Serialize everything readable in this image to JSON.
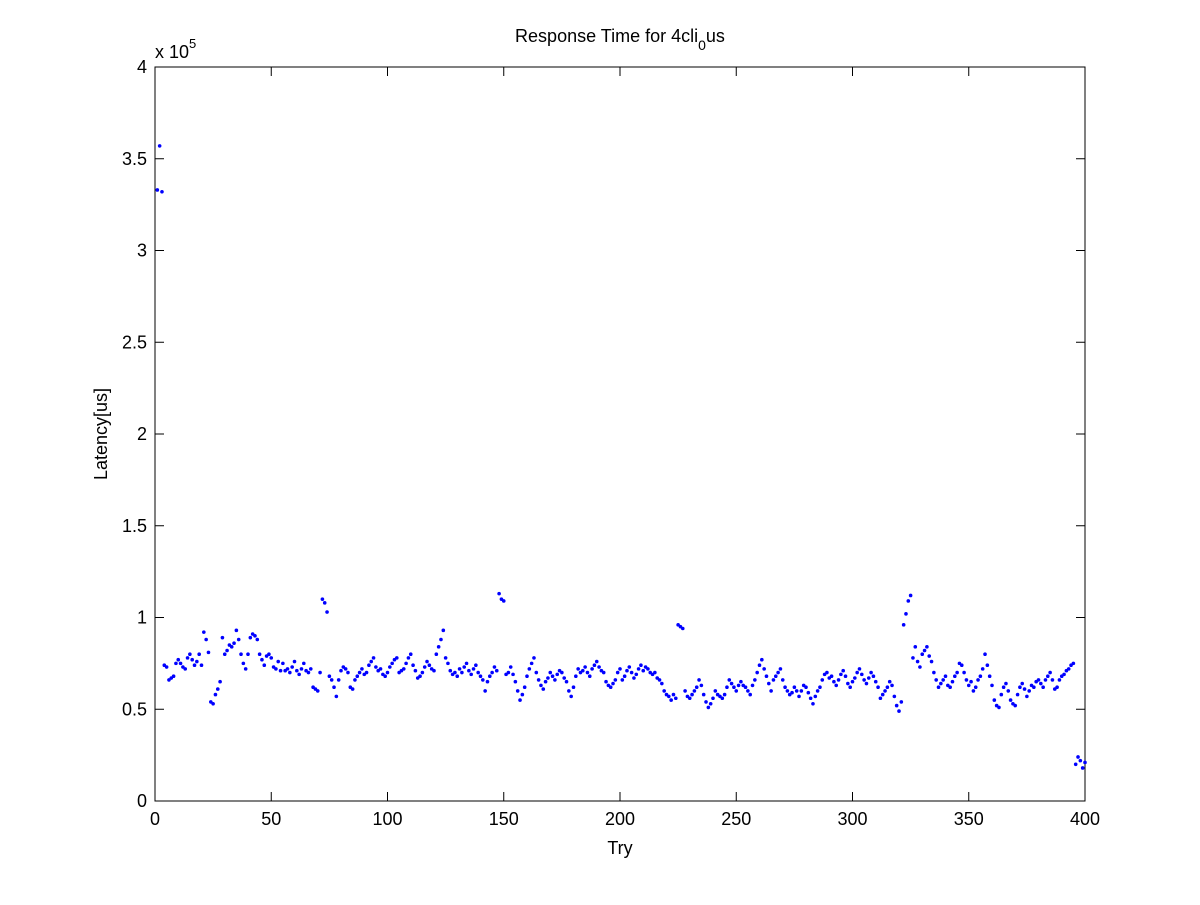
{
  "chart_data": {
    "type": "scatter",
    "title": {
      "text": "Response Time for 4cli",
      "subscript": "0",
      "suffix": "us"
    },
    "x_label": "Try",
    "y_label": "Latency[us]",
    "y_multiplier": {
      "base": "x 10",
      "exponent": "5"
    },
    "xlim": [
      0,
      400
    ],
    "ylim": [
      0,
      4
    ],
    "xticks": [
      0,
      50,
      100,
      150,
      200,
      250,
      300,
      350,
      400
    ],
    "yticks": [
      0,
      0.5,
      1,
      1.5,
      2,
      2.5,
      3,
      3.5,
      4
    ],
    "grid": false,
    "series": [
      {
        "name": "latency",
        "color": "#0000ff",
        "x": [
          1,
          2,
          3,
          4,
          5,
          6,
          7,
          8,
          9,
          10,
          11,
          12,
          13,
          14,
          15,
          16,
          17,
          18,
          19,
          20,
          21,
          22,
          23,
          24,
          25,
          26,
          27,
          28,
          29,
          30,
          31,
          32,
          33,
          34,
          35,
          36,
          37,
          38,
          39,
          40,
          41,
          42,
          43,
          44,
          45,
          46,
          47,
          48,
          49,
          50,
          51,
          52,
          53,
          54,
          55,
          56,
          57,
          58,
          59,
          60,
          61,
          62,
          63,
          64,
          65,
          66,
          67,
          68,
          69,
          70,
          71,
          72,
          73,
          74,
          75,
          76,
          77,
          78,
          79,
          80,
          81,
          82,
          83,
          84,
          85,
          86,
          87,
          88,
          89,
          90,
          91,
          92,
          93,
          94,
          95,
          96,
          97,
          98,
          99,
          100,
          101,
          102,
          103,
          104,
          105,
          106,
          107,
          108,
          109,
          110,
          111,
          112,
          113,
          114,
          115,
          116,
          117,
          118,
          119,
          120,
          121,
          122,
          123,
          124,
          125,
          126,
          127,
          128,
          129,
          130,
          131,
          132,
          133,
          134,
          135,
          136,
          137,
          138,
          139,
          140,
          141,
          142,
          143,
          144,
          145,
          146,
          147,
          148,
          149,
          150,
          151,
          152,
          153,
          154,
          155,
          156,
          157,
          158,
          159,
          160,
          161,
          162,
          163,
          164,
          165,
          166,
          167,
          168,
          169,
          170,
          171,
          172,
          173,
          174,
          175,
          176,
          177,
          178,
          179,
          180,
          181,
          182,
          183,
          184,
          185,
          186,
          187,
          188,
          189,
          190,
          191,
          192,
          193,
          194,
          195,
          196,
          197,
          198,
          199,
          200,
          201,
          202,
          203,
          204,
          205,
          206,
          207,
          208,
          209,
          210,
          211,
          212,
          213,
          214,
          215,
          216,
          217,
          218,
          219,
          220,
          221,
          222,
          223,
          224,
          225,
          226,
          227,
          228,
          229,
          230,
          231,
          232,
          233,
          234,
          235,
          236,
          237,
          238,
          239,
          240,
          241,
          242,
          243,
          244,
          245,
          246,
          247,
          248,
          249,
          250,
          251,
          252,
          253,
          254,
          255,
          256,
          257,
          258,
          259,
          260,
          261,
          262,
          263,
          264,
          265,
          266,
          267,
          268,
          269,
          270,
          271,
          272,
          273,
          274,
          275,
          276,
          277,
          278,
          279,
          280,
          281,
          282,
          283,
          284,
          285,
          286,
          287,
          288,
          289,
          290,
          291,
          292,
          293,
          294,
          295,
          296,
          297,
          298,
          299,
          300,
          301,
          302,
          303,
          304,
          305,
          306,
          307,
          308,
          309,
          310,
          311,
          312,
          313,
          314,
          315,
          316,
          317,
          318,
          319,
          320,
          321,
          322,
          323,
          324,
          325,
          326,
          327,
          328,
          329,
          330,
          331,
          332,
          333,
          334,
          335,
          336,
          337,
          338,
          339,
          340,
          341,
          342,
          343,
          344,
          345,
          346,
          347,
          348,
          349,
          350,
          351,
          352,
          353,
          354,
          355,
          356,
          357,
          358,
          359,
          360,
          361,
          362,
          363,
          364,
          365,
          366,
          367,
          368,
          369,
          370,
          371,
          372,
          373,
          374,
          375,
          376,
          377,
          378,
          379,
          380,
          381,
          382,
          383,
          384,
          385,
          386,
          387,
          388,
          389,
          390,
          391,
          392,
          393,
          394,
          395,
          396,
          397,
          398,
          399,
          400
        ],
        "values": [
          3.33,
          3.57,
          3.32,
          0.74,
          0.73,
          0.66,
          0.67,
          0.68,
          0.75,
          0.77,
          0.75,
          0.73,
          0.72,
          0.78,
          0.8,
          0.77,
          0.74,
          0.76,
          0.8,
          0.74,
          0.92,
          0.88,
          0.81,
          0.54,
          0.53,
          0.58,
          0.61,
          0.65,
          0.89,
          0.8,
          0.82,
          0.85,
          0.84,
          0.86,
          0.93,
          0.88,
          0.8,
          0.75,
          0.72,
          0.8,
          0.89,
          0.91,
          0.9,
          0.88,
          0.8,
          0.77,
          0.74,
          0.79,
          0.8,
          0.78,
          0.73,
          0.72,
          0.76,
          0.71,
          0.75,
          0.71,
          0.72,
          0.7,
          0.73,
          0.76,
          0.71,
          0.69,
          0.72,
          0.75,
          0.71,
          0.7,
          0.72,
          0.62,
          0.61,
          0.6,
          0.7,
          1.1,
          1.08,
          1.03,
          0.68,
          0.66,
          0.62,
          0.57,
          0.66,
          0.71,
          0.73,
          0.72,
          0.7,
          0.62,
          0.61,
          0.66,
          0.68,
          0.7,
          0.72,
          0.69,
          0.7,
          0.74,
          0.76,
          0.78,
          0.73,
          0.71,
          0.72,
          0.69,
          0.68,
          0.7,
          0.73,
          0.75,
          0.77,
          0.78,
          0.7,
          0.71,
          0.72,
          0.75,
          0.78,
          0.8,
          0.74,
          0.71,
          0.67,
          0.68,
          0.7,
          0.73,
          0.76,
          0.74,
          0.72,
          0.71,
          0.8,
          0.84,
          0.88,
          0.93,
          0.78,
          0.75,
          0.71,
          0.69,
          0.7,
          0.68,
          0.72,
          0.7,
          0.73,
          0.75,
          0.71,
          0.69,
          0.72,
          0.74,
          0.7,
          0.68,
          0.66,
          0.6,
          0.65,
          0.68,
          0.7,
          0.73,
          0.71,
          1.13,
          1.1,
          1.09,
          0.69,
          0.7,
          0.73,
          0.69,
          0.65,
          0.6,
          0.55,
          0.58,
          0.62,
          0.68,
          0.72,
          0.75,
          0.78,
          0.7,
          0.66,
          0.63,
          0.61,
          0.65,
          0.67,
          0.7,
          0.68,
          0.66,
          0.69,
          0.71,
          0.7,
          0.67,
          0.65,
          0.6,
          0.57,
          0.62,
          0.68,
          0.72,
          0.7,
          0.71,
          0.73,
          0.7,
          0.68,
          0.72,
          0.74,
          0.76,
          0.73,
          0.71,
          0.7,
          0.65,
          0.63,
          0.62,
          0.64,
          0.66,
          0.7,
          0.72,
          0.66,
          0.68,
          0.71,
          0.73,
          0.7,
          0.67,
          0.69,
          0.72,
          0.74,
          0.71,
          0.73,
          0.72,
          0.7,
          0.69,
          0.7,
          0.67,
          0.66,
          0.64,
          0.6,
          0.58,
          0.57,
          0.55,
          0.58,
          0.56,
          0.96,
          0.95,
          0.94,
          0.6,
          0.57,
          0.56,
          0.58,
          0.6,
          0.62,
          0.66,
          0.63,
          0.58,
          0.54,
          0.51,
          0.53,
          0.56,
          0.6,
          0.58,
          0.57,
          0.56,
          0.58,
          0.62,
          0.66,
          0.64,
          0.62,
          0.6,
          0.63,
          0.65,
          0.63,
          0.62,
          0.6,
          0.58,
          0.63,
          0.66,
          0.7,
          0.74,
          0.77,
          0.72,
          0.68,
          0.64,
          0.6,
          0.66,
          0.68,
          0.7,
          0.72,
          0.66,
          0.62,
          0.6,
          0.58,
          0.59,
          0.62,
          0.6,
          0.57,
          0.6,
          0.63,
          0.62,
          0.59,
          0.56,
          0.53,
          0.57,
          0.6,
          0.62,
          0.66,
          0.69,
          0.7,
          0.67,
          0.68,
          0.65,
          0.63,
          0.66,
          0.69,
          0.71,
          0.68,
          0.64,
          0.62,
          0.65,
          0.67,
          0.7,
          0.72,
          0.69,
          0.66,
          0.64,
          0.67,
          0.7,
          0.68,
          0.65,
          0.62,
          0.56,
          0.58,
          0.6,
          0.62,
          0.65,
          0.63,
          0.57,
          0.52,
          0.49,
          0.54,
          0.96,
          1.02,
          1.09,
          1.12,
          0.78,
          0.84,
          0.76,
          0.73,
          0.8,
          0.82,
          0.84,
          0.79,
          0.76,
          0.7,
          0.66,
          0.62,
          0.64,
          0.66,
          0.68,
          0.63,
          0.62,
          0.65,
          0.68,
          0.7,
          0.75,
          0.74,
          0.7,
          0.66,
          0.63,
          0.65,
          0.6,
          0.62,
          0.66,
          0.68,
          0.72,
          0.8,
          0.74,
          0.68,
          0.63,
          0.55,
          0.52,
          0.51,
          0.58,
          0.62,
          0.64,
          0.6,
          0.55,
          0.53,
          0.52,
          0.58,
          0.62,
          0.64,
          0.61,
          0.57,
          0.6,
          0.63,
          0.62,
          0.65,
          0.66,
          0.64,
          0.62,
          0.66,
          0.68,
          0.7,
          0.66,
          0.61,
          0.62,
          0.66,
          0.68,
          0.69,
          0.71,
          0.72,
          0.74,
          0.75,
          0.2,
          0.24,
          0.22,
          0.18,
          0.21
        ]
      }
    ]
  }
}
